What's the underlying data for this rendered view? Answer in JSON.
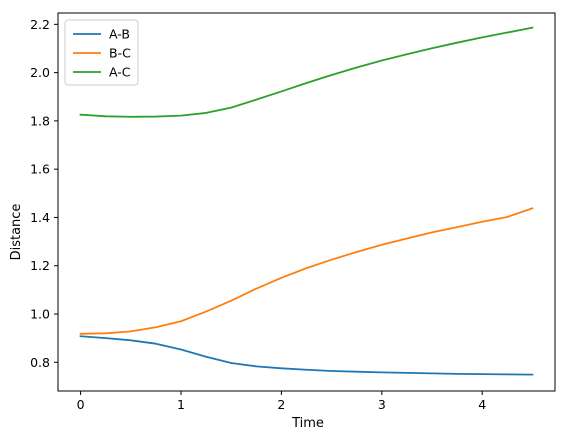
{
  "chart_data": {
    "type": "line",
    "title": "",
    "xlabel": "Time",
    "ylabel": "Distance",
    "xlim": [
      -0.225,
      4.725
    ],
    "ylim": [
      0.681,
      2.247
    ],
    "xticks": [
      0,
      1,
      2,
      3,
      4
    ],
    "xtick_labels": [
      "0",
      "1",
      "2",
      "3",
      "4"
    ],
    "yticks": [
      0.8,
      1.0,
      1.2,
      1.4,
      1.6,
      1.8,
      2.0,
      2.2
    ],
    "ytick_labels": [
      "0.8",
      "1.0",
      "1.2",
      "1.4",
      "1.6",
      "1.8",
      "2.0",
      "2.2"
    ],
    "grid": false,
    "legend_position": "top-left",
    "series": [
      {
        "name": "A-B",
        "color": "#1f77b4",
        "x": [
          0,
          0.25,
          0.5,
          0.75,
          1.0,
          1.25,
          1.5,
          1.75,
          2.0,
          2.25,
          2.5,
          2.75,
          3.0,
          3.25,
          3.5,
          3.75,
          4.0,
          4.25,
          4.5
        ],
        "y": [
          0.908,
          0.9,
          0.891,
          0.877,
          0.853,
          0.823,
          0.797,
          0.783,
          0.775,
          0.769,
          0.764,
          0.761,
          0.758,
          0.756,
          0.754,
          0.752,
          0.751,
          0.75,
          0.749
        ]
      },
      {
        "name": "B-C",
        "color": "#ff7f0e",
        "x": [
          0,
          0.25,
          0.5,
          0.75,
          1.0,
          1.25,
          1.5,
          1.75,
          2.0,
          2.25,
          2.5,
          2.75,
          3.0,
          3.25,
          3.5,
          3.75,
          4.0,
          4.25,
          4.5
        ],
        "y": [
          0.918,
          0.92,
          0.928,
          0.945,
          0.97,
          1.01,
          1.055,
          1.105,
          1.15,
          1.19,
          1.225,
          1.257,
          1.287,
          1.313,
          1.338,
          1.36,
          1.382,
          1.402,
          1.438
        ]
      },
      {
        "name": "A-C",
        "color": "#2ca02c",
        "x": [
          0,
          0.25,
          0.5,
          0.75,
          1.0,
          1.25,
          1.5,
          1.75,
          2.0,
          2.25,
          2.5,
          2.75,
          3.0,
          3.25,
          3.5,
          3.75,
          4.0,
          4.25,
          4.5
        ],
        "y": [
          1.826,
          1.819,
          1.817,
          1.818,
          1.822,
          1.833,
          1.855,
          1.888,
          1.922,
          1.957,
          1.99,
          2.021,
          2.05,
          2.076,
          2.101,
          2.124,
          2.146,
          2.166,
          2.186
        ]
      }
    ]
  }
}
